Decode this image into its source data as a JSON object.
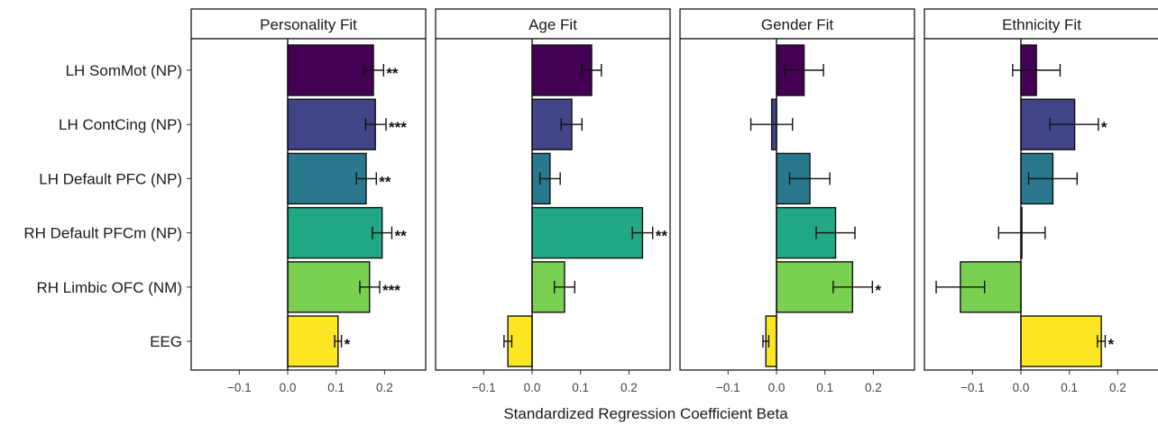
{
  "chart_data": {
    "type": "bar",
    "orientation": "horizontal",
    "xlabel": "Standardized Regression Coefficient Beta",
    "xlim": [
      -0.2,
      0.28
    ],
    "xticks": [
      -0.1,
      0.0,
      0.1,
      0.2
    ],
    "xtick_labels": [
      "−0.1",
      "0.0",
      "0.1",
      "0.2"
    ],
    "categories": [
      "LH SomMot (NP)",
      "LH ContCing (NP)",
      "LH Default PFC (NP)",
      "RH Default PFCm (NP)",
      "RH Limbic OFC (NM)",
      "EEG"
    ],
    "colors": [
      "#440154",
      "#414487",
      "#2a788e",
      "#22a884",
      "#7ad151",
      "#fde725"
    ],
    "grid": false,
    "legend": "none",
    "panels": [
      {
        "title": "Personality Fit",
        "values": [
          0.177,
          0.181,
          0.162,
          0.195,
          0.169,
          0.104
        ],
        "err_low": [
          0.158,
          0.161,
          0.142,
          0.175,
          0.149,
          0.097
        ],
        "err_high": [
          0.198,
          0.203,
          0.183,
          0.215,
          0.19,
          0.111
        ],
        "sig": [
          "**",
          "***",
          "**",
          "**",
          "***",
          "*"
        ]
      },
      {
        "title": "Age Fit",
        "values": [
          0.123,
          0.082,
          0.037,
          0.228,
          0.067,
          -0.05
        ],
        "err_low": [
          0.103,
          0.06,
          0.016,
          0.207,
          0.046,
          -0.058
        ],
        "err_high": [
          0.143,
          0.103,
          0.058,
          0.249,
          0.088,
          -0.042
        ],
        "sig": [
          "",
          "",
          "",
          "**",
          "",
          ""
        ]
      },
      {
        "title": "Gender Fit",
        "values": [
          0.057,
          -0.01,
          0.069,
          0.122,
          0.157,
          -0.022
        ],
        "err_low": [
          0.017,
          -0.053,
          0.027,
          0.082,
          0.117,
          -0.028
        ],
        "err_high": [
          0.097,
          0.033,
          0.11,
          0.162,
          0.198,
          -0.016
        ],
        "sig": [
          "",
          "",
          "",
          "",
          "*",
          ""
        ]
      },
      {
        "title": "Ethnicity Fit",
        "values": [
          0.032,
          0.111,
          0.066,
          0.002,
          -0.125,
          0.166
        ],
        "err_low": [
          -0.017,
          0.06,
          0.016,
          -0.046,
          -0.175,
          0.158
        ],
        "err_high": [
          0.081,
          0.16,
          0.116,
          0.05,
          -0.075,
          0.174
        ],
        "sig": [
          "",
          "*",
          "",
          "",
          "",
          "*"
        ]
      }
    ]
  }
}
